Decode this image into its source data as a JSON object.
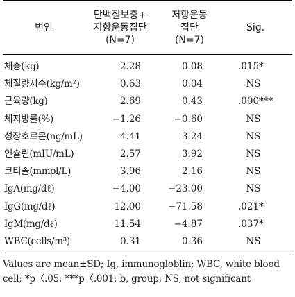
{
  "header": {
    "variable": "변인",
    "group1_line1": "단백질보충+",
    "group1_line2": "저항운동집단",
    "group1_line3": "(N=7)",
    "group2_line1": "저항운동",
    "group2_line2": "집단",
    "group2_line3": "(N=7)",
    "sig": "Sig."
  },
  "rows": [
    {
      "variable": "체중(kg)",
      "g1": "2.28",
      "g2": "0.08",
      "sig": ".015*"
    },
    {
      "variable": "체질량지수(kg/m²)",
      "g1": "0.63",
      "g2": "0.04",
      "sig": "NS"
    },
    {
      "variable": "근육량(kg)",
      "g1": "2.69",
      "g2": "0.43",
      "sig": ".000***"
    },
    {
      "variable": "체지방률(%)",
      "g1": "−1.26",
      "g2": "−0.60",
      "sig": "NS"
    },
    {
      "variable": "성장호르몬(ng/mL)",
      "g1": "4.41",
      "g2": "3.24",
      "sig": "NS"
    },
    {
      "variable": "인슐린(mIU/mL)",
      "g1": "2.57",
      "g2": "3.92",
      "sig": "NS"
    },
    {
      "variable": "코티졸(mmol/L)",
      "g1": "3.96",
      "g2": "2.16",
      "sig": "NS"
    },
    {
      "variable": "IgA(mg/dℓ)",
      "g1": "−4.00",
      "g2": "−23.00",
      "sig": "NS"
    },
    {
      "variable": "IgG(mg/dℓ)",
      "g1": "12.00",
      "g2": "−71.58",
      "sig": ".021*"
    },
    {
      "variable": "IgM(mg/dℓ)",
      "g1": "11.54",
      "g2": "−4.87",
      "sig": ".037*"
    },
    {
      "variable": "WBC(cells/m³)",
      "g1": "0.31",
      "g2": "0.36",
      "sig": "NS"
    }
  ],
  "note": {
    "line1": "Values are mean±SD; Ig, immunogloblin; WBC, white blood",
    "line2": "cell; *p〈.05; ***p〈.001; b, group; NS, not significant"
  }
}
